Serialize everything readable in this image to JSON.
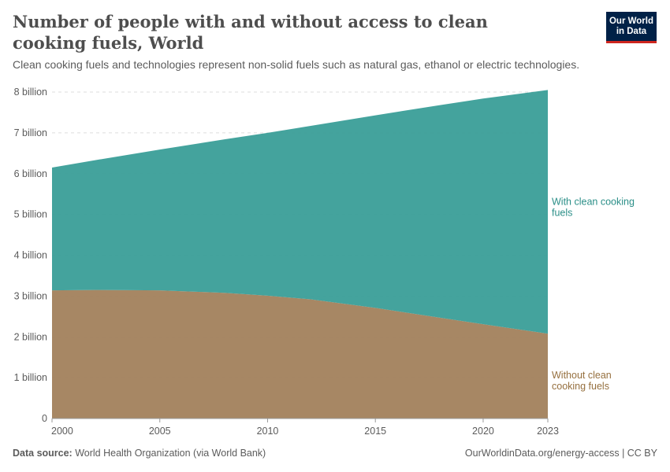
{
  "title": "Number of people with and without access to clean cooking fuels, World",
  "subtitle": "Clean cooking fuels and technologies represent non-solid fuels such as natural gas, ethanol or electric technologies.",
  "logo": "Our World in Data",
  "footer": {
    "source_label": "Data source:",
    "source": "World Health Organization (via World Bank)",
    "url": "OurWorldinData.org/energy-access | CC BY"
  },
  "colors": {
    "with": "#3a9e98",
    "without": "#a2815c"
  },
  "chart_data": {
    "type": "area",
    "stacked": true,
    "x": [
      2000,
      2002,
      2005,
      2008,
      2010,
      2012,
      2015,
      2018,
      2020,
      2023
    ],
    "xticks": [
      "2000",
      "2005",
      "2010",
      "2015",
      "2020",
      "2023"
    ],
    "yticks": [
      "0",
      "1 billion",
      "2 billion",
      "3 billion",
      "4 billion",
      "5 billion",
      "6 billion",
      "7 billion",
      "8 billion"
    ],
    "ylim": [
      0,
      8000000000
    ],
    "grid": "horizontal dashed",
    "series": [
      {
        "name": "Without clean cooking fuels",
        "label_lines": [
          "Without clean",
          "cooking fuels"
        ],
        "values": [
          3140000000.0,
          3150000000.0,
          3140000000.0,
          3080000000.0,
          3010000000.0,
          2920000000.0,
          2710000000.0,
          2470000000.0,
          2310000000.0,
          2080000000.0
        ]
      },
      {
        "name": "With clean cooking fuels",
        "label_lines": [
          "With clean cooking",
          "fuels"
        ],
        "values": [
          3010000000.0,
          3180000000.0,
          3450000000.0,
          3760000000.0,
          3990000000.0,
          4250000000.0,
          4720000000.0,
          5210000000.0,
          5530000000.0,
          5970000000.0
        ]
      }
    ]
  }
}
